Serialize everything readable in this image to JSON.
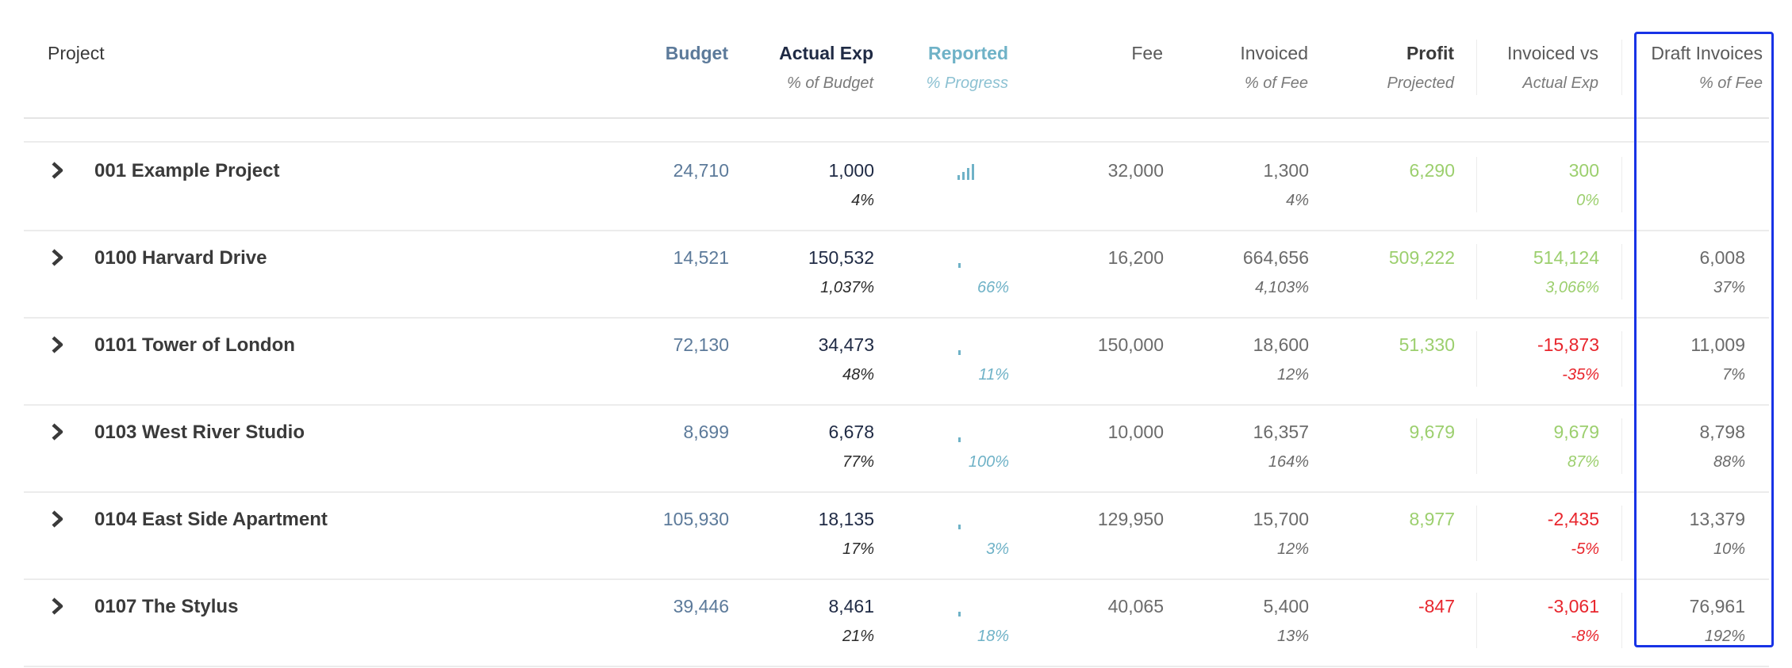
{
  "colors": {
    "budget": "#5c7a9a",
    "actual": "#1f2a44",
    "reported": "#6fb2c7",
    "neutral": "#6b6b6b",
    "positive": "#9ccf6e",
    "negative": "#e8262d",
    "highlight": "#1833e6"
  },
  "header": {
    "project": "Project",
    "budget": "Budget",
    "actual": "Actual Exp",
    "actual_sub": "% of Budget",
    "reported": "Reported",
    "reported_sub": "% Progress",
    "fee": "Fee",
    "invoiced": "Invoiced",
    "invoiced_sub": "% of Fee",
    "profit": "Profit",
    "profit_sub": "Projected",
    "inv_vs": "Invoiced vs",
    "inv_vs_sub": "Actual Exp",
    "draft": "Draft Invoices",
    "draft_sub": "% of Fee"
  },
  "rows": [
    {
      "name": "001 Example Project",
      "budget": "24,710",
      "actual": "1,000",
      "actual_pct": "4%",
      "reported_icon": "bar-chart-icon",
      "reported_pct": "",
      "fee": "32,000",
      "invoiced": "1,300",
      "invoiced_pct": "4%",
      "profit": "6,290",
      "profit_status": "positive",
      "inv_vs": "300",
      "inv_vs_pct": "0%",
      "inv_vs_status": "positive",
      "draft": "",
      "draft_pct": ""
    },
    {
      "name": "0100 Harvard Drive",
      "budget": "14,521",
      "actual": "150,532",
      "actual_pct": "1,037%",
      "reported_icon": "progress-dot-icon",
      "reported_pct": "66%",
      "fee": "16,200",
      "invoiced": "664,656",
      "invoiced_pct": "4,103%",
      "profit": "509,222",
      "profit_status": "positive",
      "inv_vs": "514,124",
      "inv_vs_pct": "3,066%",
      "inv_vs_status": "positive",
      "draft": "6,008",
      "draft_pct": "37%"
    },
    {
      "name": "0101 Tower of London",
      "budget": "72,130",
      "actual": "34,473",
      "actual_pct": "48%",
      "reported_icon": "progress-dot-icon",
      "reported_pct": "11%",
      "fee": "150,000",
      "invoiced": "18,600",
      "invoiced_pct": "12%",
      "profit": "51,330",
      "profit_status": "positive",
      "inv_vs": "-15,873",
      "inv_vs_pct": "-35%",
      "inv_vs_status": "negative",
      "draft": "11,009",
      "draft_pct": "7%"
    },
    {
      "name": "0103 West River Studio",
      "budget": "8,699",
      "actual": "6,678",
      "actual_pct": "77%",
      "reported_icon": "progress-dot-icon",
      "reported_pct": "100%",
      "fee": "10,000",
      "invoiced": "16,357",
      "invoiced_pct": "164%",
      "profit": "9,679",
      "profit_status": "positive",
      "inv_vs": "9,679",
      "inv_vs_pct": "87%",
      "inv_vs_status": "positive",
      "draft": "8,798",
      "draft_pct": "88%"
    },
    {
      "name": "0104 East Side Apartment",
      "budget": "105,930",
      "actual": "18,135",
      "actual_pct": "17%",
      "reported_icon": "progress-dot-icon",
      "reported_pct": "3%",
      "fee": "129,950",
      "invoiced": "15,700",
      "invoiced_pct": "12%",
      "profit": "8,977",
      "profit_status": "positive",
      "inv_vs": "-2,435",
      "inv_vs_pct": "-5%",
      "inv_vs_status": "negative",
      "draft": "13,379",
      "draft_pct": "10%"
    },
    {
      "name": "0107 The Stylus",
      "budget": "39,446",
      "actual": "8,461",
      "actual_pct": "21%",
      "reported_icon": "progress-dot-icon",
      "reported_pct": "18%",
      "fee": "40,065",
      "invoiced": "5,400",
      "invoiced_pct": "13%",
      "profit": "-847",
      "profit_status": "negative",
      "inv_vs": "-3,061",
      "inv_vs_pct": "-8%",
      "inv_vs_status": "negative",
      "draft": "76,961",
      "draft_pct": "192%"
    }
  ]
}
